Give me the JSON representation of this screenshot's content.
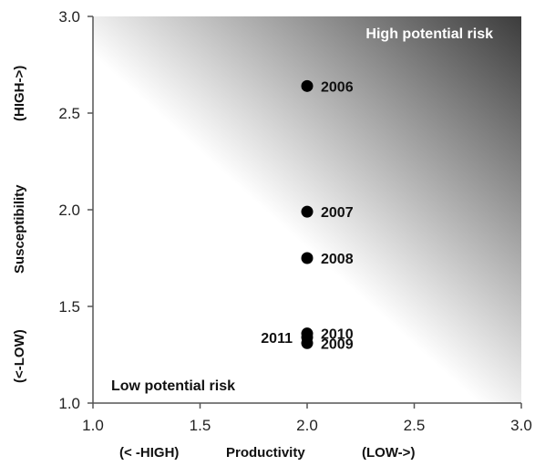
{
  "chart_data": {
    "type": "scatter",
    "title": "",
    "xlim": [
      1.0,
      3.0
    ],
    "ylim": [
      1.0,
      3.0
    ],
    "x_ticks": [
      "1.0",
      "1.5",
      "2.0",
      "2.5",
      "3.0"
    ],
    "y_ticks": [
      "1.0",
      "1.5",
      "2.0",
      "2.5",
      "3.0"
    ],
    "x_tick_values": [
      1.0,
      1.5,
      2.0,
      2.5,
      3.0
    ],
    "y_tick_values": [
      1.0,
      1.5,
      2.0,
      2.5,
      3.0
    ],
    "xlabel": {
      "left": "(< -HIGH)",
      "center": "Productivity",
      "right": "(LOW->)"
    },
    "ylabel": {
      "bottom": "(<-LOW)",
      "center": "Susceptibility",
      "top": "(HIGH->)"
    },
    "grid": false,
    "background": "gradient from white (lower-left) to dark gray (upper-right)",
    "annotations": {
      "high_risk": "High potential risk",
      "low_risk": "Low potential risk"
    },
    "points": [
      {
        "label": "2006",
        "x": 2.0,
        "y": 2.64,
        "label_side": "right"
      },
      {
        "label": "2007",
        "x": 2.0,
        "y": 1.99,
        "label_side": "right"
      },
      {
        "label": "2008",
        "x": 2.0,
        "y": 1.75,
        "label_side": "right"
      },
      {
        "label": "2010",
        "x": 2.0,
        "y": 1.36,
        "label_side": "right"
      },
      {
        "label": "2009",
        "x": 2.0,
        "y": 1.31,
        "label_side": "right"
      },
      {
        "label": "2011",
        "x": 2.0,
        "y": 1.34,
        "label_side": "left"
      }
    ],
    "colors": {
      "marker": "#000000",
      "gradient_light": "#ffffff",
      "gradient_dark": "#3c3c3c",
      "axis": "#555555"
    }
  }
}
